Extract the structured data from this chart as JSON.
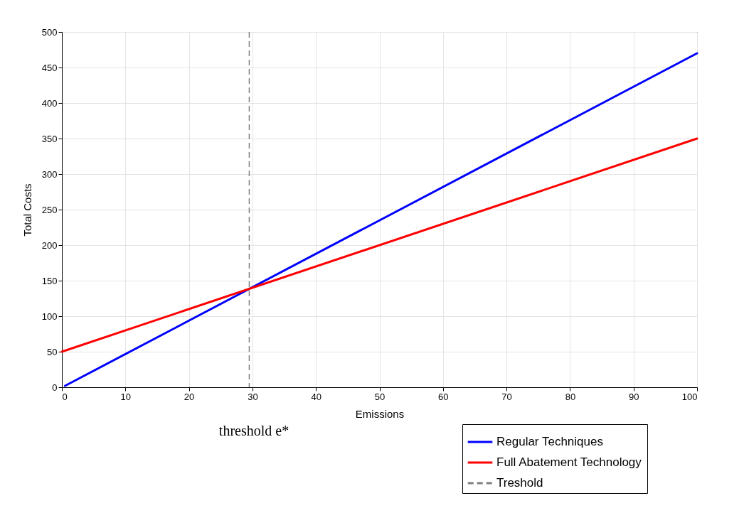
{
  "chart_data": {
    "type": "line",
    "xlabel": "Emissions",
    "ylabel": "Total Costs",
    "x": [
      0.5,
      100
    ],
    "series": [
      {
        "name": "Regular Techniques",
        "color": "#0000ff",
        "values": [
          2,
          470
        ]
      },
      {
        "name": "Full Abatement Technology",
        "color": "#ff0000",
        "x": [
          0,
          100
        ],
        "values": [
          50,
          350
        ]
      }
    ],
    "xlim": [
      0,
      100
    ],
    "xticks": [
      0,
      10,
      20,
      30,
      40,
      50,
      60,
      70,
      80,
      90,
      100
    ],
    "ylim": [
      0,
      500
    ],
    "yticks": [
      0,
      50,
      100,
      150,
      200,
      250,
      300,
      350,
      400,
      450,
      500
    ],
    "ref_lines": [
      {
        "axis": "x",
        "value": 29.5,
        "label": "Treshold",
        "color": "#808080",
        "line_style": "dashed"
      }
    ],
    "annotations": [
      "threshold e*"
    ],
    "grid": true,
    "legend": "bottom right",
    "line_style": "solid",
    "marker": "none"
  }
}
